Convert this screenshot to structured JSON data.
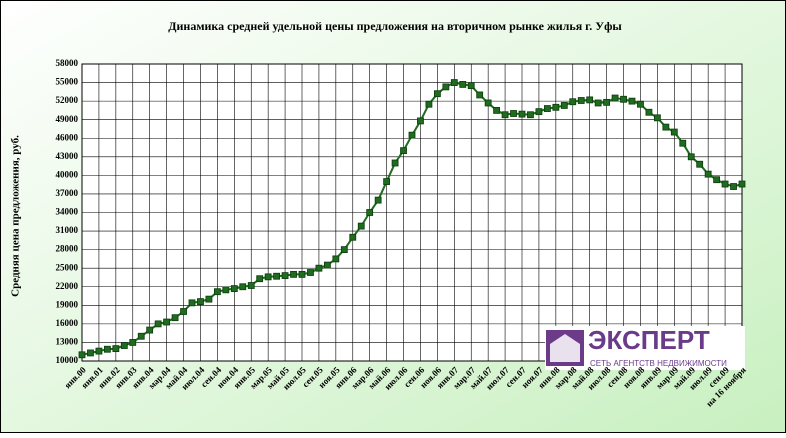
{
  "chart_data": {
    "type": "line",
    "title": "Динамика средней удельной цены предложения на вторичном рынке жилья г. Уфы",
    "ylabel": "Средняя цена предложения, руб.",
    "categories": [
      "янв.00",
      null,
      "янв.01",
      null,
      "янв.02",
      null,
      "янв.03",
      null,
      "янв.04",
      null,
      "мар.04",
      null,
      "май.04",
      null,
      "июл.04",
      null,
      "сен.04",
      null,
      "ноя.04",
      null,
      "янв.05",
      null,
      "мар.05",
      null,
      "май.05",
      null,
      "июл.05",
      null,
      "сен.05",
      null,
      "ноя.05",
      null,
      "янв.06",
      null,
      "мар.06",
      null,
      "май.06",
      null,
      "июл.06",
      null,
      "сен.06",
      null,
      "ноя.06",
      null,
      "янв.07",
      null,
      "мар.07",
      null,
      "май.07",
      null,
      "июл.07",
      null,
      "сен.07",
      null,
      "ноя.07",
      null,
      "янв.08",
      null,
      "мар.08",
      null,
      "май.08",
      null,
      "июл.08",
      null,
      "сен.08",
      null,
      "ноя.08",
      null,
      "янв.09",
      null,
      "мар.09",
      null,
      "май.09",
      null,
      "июл.09",
      null,
      "сен.09",
      null,
      "на 16 ноября"
    ],
    "values": [
      11000,
      11300,
      11600,
      11900,
      12000,
      12500,
      13000,
      14000,
      15000,
      16000,
      16300,
      17000,
      18000,
      19400,
      19600,
      20000,
      21200,
      21500,
      21700,
      22000,
      22200,
      23300,
      23600,
      23700,
      23800,
      24000,
      24000,
      24300,
      25000,
      25500,
      26500,
      28000,
      30000,
      31800,
      34000,
      36000,
      39000,
      42000,
      44000,
      46500,
      48800,
      51500,
      53200,
      54300,
      55000,
      54700,
      54500,
      53000,
      51700,
      50500,
      49800,
      50000,
      49900,
      49800,
      50300,
      50800,
      51000,
      51300,
      51900,
      52100,
      52200,
      51700,
      51800,
      52500,
      52300,
      52000,
      51500,
      50200,
      49300,
      47800,
      47000,
      45200,
      43000,
      41800,
      40200,
      39300,
      38600,
      38200,
      38600
    ],
    "color": "#1f6b1f",
    "ylim": [
      10000,
      58000
    ],
    "yticks": [
      10000,
      13000,
      16000,
      19000,
      22000,
      25000,
      28000,
      31000,
      34000,
      37000,
      40000,
      43000,
      46000,
      49000,
      52000,
      55000,
      58000
    ],
    "grid": true
  },
  "logo": {
    "name": "ЭКСПЕРТ",
    "tagline": "СЕТЬ АГЕНТСТВ НЕДВИЖИМОСТИ"
  }
}
